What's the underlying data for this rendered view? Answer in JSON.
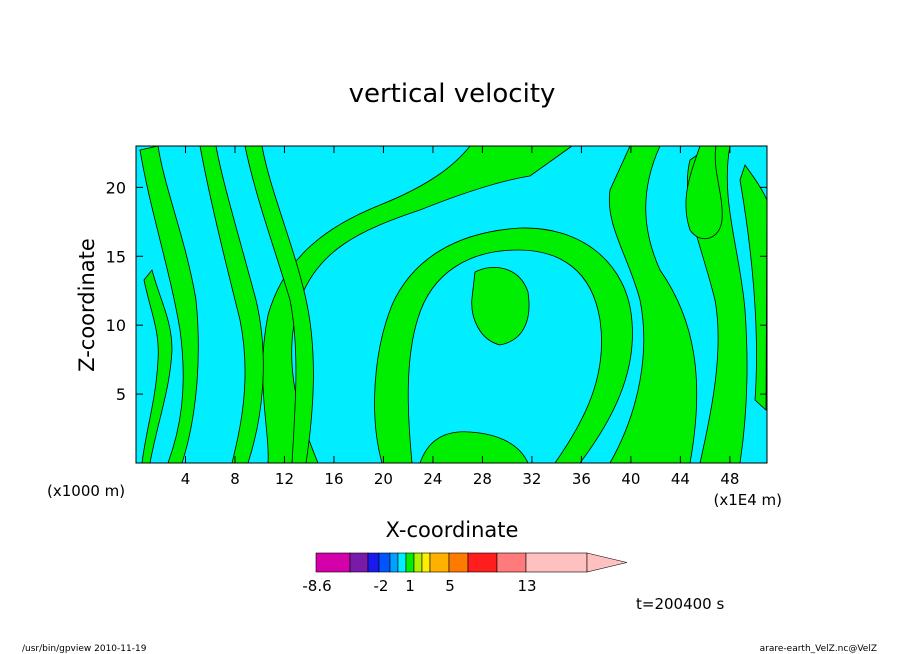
{
  "chart_data": {
    "type": "heatmap",
    "subtype": "filled-contour",
    "title": "vertical velocity",
    "xlabel": "X-coordinate",
    "ylabel": "Z-coordinate",
    "x_unit_left": "(x1000 m)",
    "x_unit_right": "(x1E4 m)",
    "xlim": [
      0,
      51
    ],
    "ylim": [
      0,
      23
    ],
    "xticks": [
      4,
      8,
      12,
      16,
      20,
      24,
      28,
      32,
      36,
      40,
      44,
      48
    ],
    "yticks": [
      5,
      10,
      15,
      20
    ],
    "time_label": "t=200400 s",
    "colorbar": {
      "colors": [
        "#d400aa",
        "#7a1aa8",
        "#1a1aee",
        "#0055ff",
        "#00a0ff",
        "#00eeff",
        "#00ee00",
        "#b0f000",
        "#ffee00",
        "#ffb000",
        "#ff7a00",
        "#ff1e1e",
        "#ff7a7a",
        "#ffc0c0"
      ],
      "tick_labels": [
        "-8.6",
        "-2",
        "1",
        "5",
        "13"
      ]
    },
    "regions": {
      "background": "#00eeff",
      "positive": "#00ee00"
    }
  },
  "footer": {
    "left": "/usr/bin/gpview   2010-11-19",
    "right": "arare-earth_VelZ.nc@VelZ"
  }
}
